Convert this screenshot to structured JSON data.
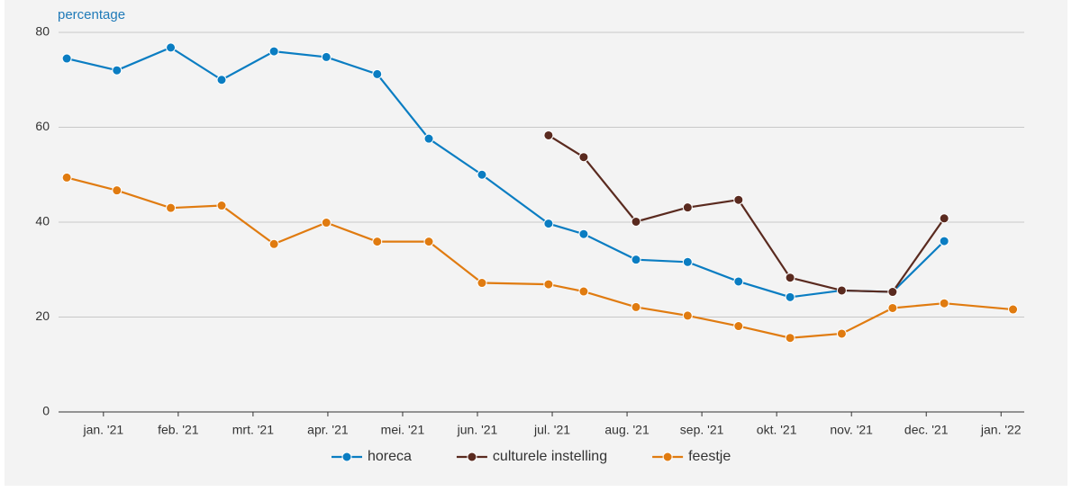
{
  "chart_data": {
    "type": "line",
    "y_label": "percentage",
    "x": [
      -0.49,
      0.18,
      0.9,
      1.58,
      2.28,
      2.98,
      3.66,
      4.35,
      5.06,
      5.95,
      6.42,
      7.12,
      7.81,
      8.49,
      9.18,
      9.87,
      10.55,
      11.24,
      12.16
    ],
    "series": [
      {
        "name": "horeca",
        "color": "#0a7dc2",
        "values": [
          74.5,
          72,
          76.8,
          70,
          76,
          74.8,
          71.2,
          57.6,
          50,
          39.7,
          37.5,
          32.1,
          31.6,
          27.5,
          24.2,
          25.6,
          25.3,
          36,
          null
        ]
      },
      {
        "name": "culturele instelling",
        "color": "#5a2a1f",
        "values": [
          null,
          null,
          null,
          null,
          null,
          null,
          null,
          null,
          null,
          58.3,
          53.7,
          40.1,
          43.1,
          44.7,
          28.3,
          25.6,
          25.3,
          40.8,
          null
        ]
      },
      {
        "name": "feestje",
        "color": "#e07b10",
        "values": [
          49.4,
          46.7,
          43,
          43.5,
          35.4,
          39.9,
          35.9,
          35.9,
          27.2,
          26.9,
          25.4,
          22.1,
          20.3,
          18.1,
          15.6,
          16.5,
          21.9,
          22.9,
          21.6
        ]
      }
    ],
    "xlim": [
      -0.6,
      12.31
    ],
    "xticks": [
      {
        "value": 0,
        "label": "jan. '21"
      },
      {
        "value": 1,
        "label": "feb. '21"
      },
      {
        "value": 2,
        "label": "mrt. '21"
      },
      {
        "value": 3,
        "label": "apr. '21"
      },
      {
        "value": 4,
        "label": "mei. '21"
      },
      {
        "value": 5,
        "label": "jun. '21"
      },
      {
        "value": 6,
        "label": "jul. '21"
      },
      {
        "value": 7,
        "label": "aug. '21"
      },
      {
        "value": 8,
        "label": "sep. '21"
      },
      {
        "value": 9,
        "label": "okt. '21"
      },
      {
        "value": 10,
        "label": "nov. '21"
      },
      {
        "value": 11,
        "label": "dec. '21"
      },
      {
        "value": 12,
        "label": "jan. '22"
      }
    ],
    "ylim": [
      0,
      80
    ],
    "yticks": [
      0,
      20,
      40,
      60,
      80
    ],
    "grid": true,
    "legend": "bottom"
  }
}
